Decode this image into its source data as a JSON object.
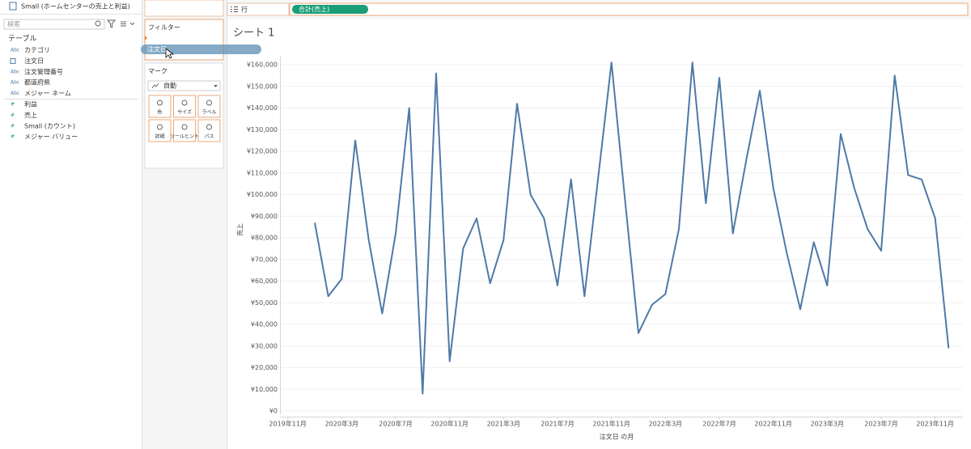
{
  "datasource": "Small (ホームセンターの売上と利益)",
  "search_placeholder": "検索",
  "tables_heading": "テーブル",
  "dimensions": [
    {
      "icon": "Abc",
      "name": "カテゴリ"
    },
    {
      "icon": "",
      "name": "注文日"
    },
    {
      "icon": "Abc",
      "name": "注文管理番号"
    },
    {
      "icon": "Abc",
      "name": "都道府県"
    },
    {
      "icon": "Abc",
      "name": "メジャー ネーム"
    }
  ],
  "measures": [
    {
      "icon": "#",
      "name": "利益"
    },
    {
      "icon": "#",
      "name": "売上"
    },
    {
      "icon": "#",
      "name": "Small (カウント)"
    },
    {
      "icon": "#",
      "name": "メジャー バリュー"
    }
  ],
  "filters_heading": "フィルター",
  "dragged_pill": "注文日",
  "marks_heading": "マーク",
  "mark_type": "自動",
  "mark_buttons": [
    "色",
    "サイズ",
    "ラベル",
    "詳細",
    "ツールヒント",
    "パス"
  ],
  "rows_label": "行",
  "rows_pill": "合計(売上)",
  "chart_data": {
    "type": "line",
    "title": "シート 1",
    "x_label": "注文日 の月",
    "y_label": "売上",
    "color": "#4e79a7",
    "grid": true,
    "x": [
      "2020-01",
      "2020-02",
      "2020-03",
      "2020-04",
      "2020-05",
      "2020-06",
      "2020-07",
      "2020-08",
      "2020-09",
      "2020-10",
      "2020-11",
      "2020-12",
      "2021-01",
      "2021-02",
      "2021-03",
      "2021-04",
      "2021-05",
      "2021-06",
      "2021-07",
      "2021-08",
      "2021-09",
      "2021-10",
      "2021-11",
      "2021-12",
      "2022-01",
      "2022-02",
      "2022-03",
      "2022-04",
      "2022-05",
      "2022-06",
      "2022-07",
      "2022-08",
      "2022-09",
      "2022-10",
      "2022-11",
      "2022-12",
      "2023-01",
      "2023-02",
      "2023-03",
      "2023-04",
      "2023-05",
      "2023-06",
      "2023-07",
      "2023-08",
      "2023-09",
      "2023-10",
      "2023-11",
      "2023-12"
    ],
    "values": [
      87000,
      53000,
      61000,
      125000,
      79000,
      45000,
      82000,
      140000,
      8000,
      156000,
      23000,
      75000,
      89000,
      59000,
      79000,
      142000,
      100000,
      89000,
      58000,
      107000,
      53000,
      107000,
      161000,
      98000,
      36000,
      49000,
      54000,
      84000,
      161000,
      96000,
      154000,
      82000,
      116000,
      148000,
      103000,
      73000,
      47000,
      78000,
      58000,
      128000,
      103000,
      84000,
      74000,
      155000,
      109000,
      107000,
      89000,
      29000
    ],
    "xlim": [
      "2019-10",
      "2024-01"
    ],
    "xticks": [
      {
        "value": "2019-11",
        "label": "2019年11月"
      },
      {
        "value": "2020-03",
        "label": "2020年3月"
      },
      {
        "value": "2020-07",
        "label": "2020年7月"
      },
      {
        "value": "2020-11",
        "label": "2020年11月"
      },
      {
        "value": "2021-03",
        "label": "2021年3月"
      },
      {
        "value": "2021-07",
        "label": "2021年7月"
      },
      {
        "value": "2021-11",
        "label": "2021年11月"
      },
      {
        "value": "2022-03",
        "label": "2022年3月"
      },
      {
        "value": "2022-07",
        "label": "2022年7月"
      },
      {
        "value": "2022-11",
        "label": "2022年11月"
      },
      {
        "value": "2023-03",
        "label": "2023年3月"
      },
      {
        "value": "2023-07",
        "label": "2023年7月"
      },
      {
        "value": "2023-11",
        "label": "2023年11月"
      }
    ],
    "ylim": [
      0,
      160000
    ],
    "yticks": [
      {
        "value": 0,
        "label": "¥0"
      },
      {
        "value": 10000,
        "label": "¥10,000"
      },
      {
        "value": 20000,
        "label": "¥20,000"
      },
      {
        "value": 30000,
        "label": "¥30,000"
      },
      {
        "value": 40000,
        "label": "¥40,000"
      },
      {
        "value": 50000,
        "label": "¥50,000"
      },
      {
        "value": 60000,
        "label": "¥60,000"
      },
      {
        "value": 70000,
        "label": "¥70,000"
      },
      {
        "value": 80000,
        "label": "¥80,000"
      },
      {
        "value": 90000,
        "label": "¥90,000"
      },
      {
        "value": 100000,
        "label": "¥100,000"
      },
      {
        "value": 110000,
        "label": "¥110,000"
      },
      {
        "value": 120000,
        "label": "¥120,000"
      },
      {
        "value": 130000,
        "label": "¥130,000"
      },
      {
        "value": 140000,
        "label": "¥140,000"
      },
      {
        "value": 150000,
        "label": "¥150,000"
      },
      {
        "value": 160000,
        "label": "¥160,000"
      }
    ]
  }
}
